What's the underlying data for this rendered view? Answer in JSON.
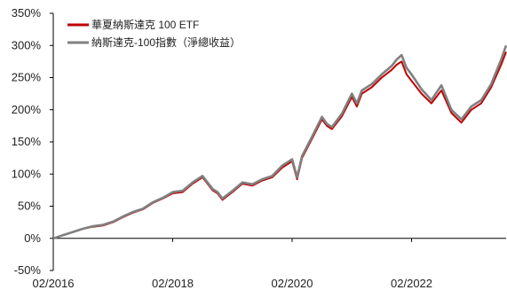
{
  "chart_data": {
    "type": "line",
    "title": "",
    "xlabel": "",
    "ylabel": "",
    "ylim": [
      -50,
      350
    ],
    "y_ticks": [
      -50,
      0,
      50,
      100,
      150,
      200,
      250,
      300,
      350
    ],
    "y_tick_labels": [
      "-50%",
      "0%",
      "50%",
      "100%",
      "150%",
      "200%",
      "250%",
      "300%",
      "350%"
    ],
    "x_range": [
      "2016-02",
      "2023-09"
    ],
    "x_ticks": [
      "2016-02",
      "2018-02",
      "2020-02",
      "2022-02"
    ],
    "x_tick_labels": [
      "02/2016",
      "02/2018",
      "02/2020",
      "02/2022"
    ],
    "grid": false,
    "legend_position": "top-left",
    "x": [
      "2016-02",
      "2016-04",
      "2016-06",
      "2016-08",
      "2016-10",
      "2016-12",
      "2017-02",
      "2017-04",
      "2017-06",
      "2017-08",
      "2017-10",
      "2017-12",
      "2018-02",
      "2018-04",
      "2018-06",
      "2018-08",
      "2018-10",
      "2018-11",
      "2018-12",
      "2019-02",
      "2019-04",
      "2019-06",
      "2019-08",
      "2019-10",
      "2019-12",
      "2020-01",
      "2020-02",
      "2020-03",
      "2020-04",
      "2020-06",
      "2020-08",
      "2020-09",
      "2020-10",
      "2020-12",
      "2021-02",
      "2021-03",
      "2021-04",
      "2021-06",
      "2021-08",
      "2021-10",
      "2021-11",
      "2021-12",
      "2022-01",
      "2022-02",
      "2022-04",
      "2022-06",
      "2022-08",
      "2022-10",
      "2022-12",
      "2023-02",
      "2023-04",
      "2023-06",
      "2023-08",
      "2023-09"
    ],
    "series": [
      {
        "name": "華夏納斯達克 100 ETF",
        "color": "#c00000",
        "values": [
          0,
          5,
          10,
          15,
          18,
          20,
          25,
          33,
          40,
          45,
          55,
          62,
          70,
          72,
          85,
          95,
          75,
          70,
          60,
          72,
          85,
          82,
          90,
          95,
          110,
          115,
          120,
          92,
          125,
          155,
          185,
          175,
          170,
          190,
          220,
          205,
          225,
          235,
          250,
          262,
          270,
          275,
          255,
          245,
          225,
          210,
          230,
          195,
          180,
          200,
          210,
          235,
          270,
          290
        ]
      },
      {
        "name": "納斯達克-100指數（淨總收益）",
        "color": "#808080",
        "values": [
          0,
          5,
          10,
          15,
          19,
          21,
          26,
          34,
          41,
          46,
          56,
          63,
          72,
          74,
          87,
          97,
          77,
          72,
          62,
          74,
          87,
          84,
          92,
          97,
          113,
          118,
          123,
          95,
          128,
          158,
          189,
          178,
          173,
          194,
          225,
          210,
          230,
          240,
          255,
          268,
          278,
          285,
          265,
          255,
          232,
          215,
          238,
          200,
          185,
          205,
          215,
          240,
          278,
          300
        ]
      }
    ]
  }
}
